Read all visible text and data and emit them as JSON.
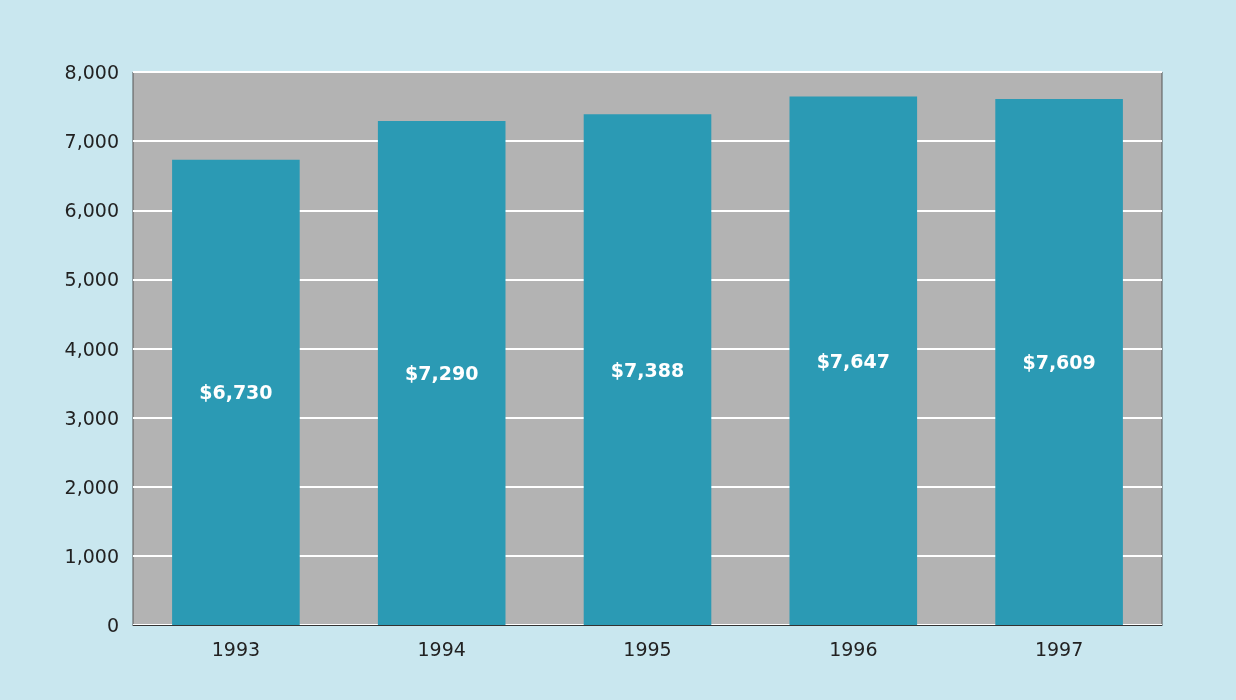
{
  "chart_data": {
    "type": "bar",
    "categories": [
      "1993",
      "1994",
      "1995",
      "1996",
      "1997"
    ],
    "values": [
      6730,
      7290,
      7388,
      7647,
      7609
    ],
    "color": "#2b9ab4",
    "value_labels": [
      "$6,730",
      "$7,290",
      "$7,388",
      "$7,647",
      "$7,609"
    ],
    "ylim": [
      0,
      8000
    ],
    "yticks": [
      0,
      {
        "value": 1000,
        "label": "1,000"
      },
      {
        "value": 2000,
        "label": "2,000"
      },
      {
        "value": 3000,
        "label": "3,000"
      },
      {
        "value": 4000,
        "label": "4,000"
      },
      {
        "value": 5000,
        "label": "5,000"
      },
      {
        "value": 6000,
        "label": "6,000"
      },
      {
        "value": 7000,
        "label": "7,000"
      },
      {
        "value": 8000,
        "label": "8,000"
      }
    ],
    "grid": "y"
  }
}
